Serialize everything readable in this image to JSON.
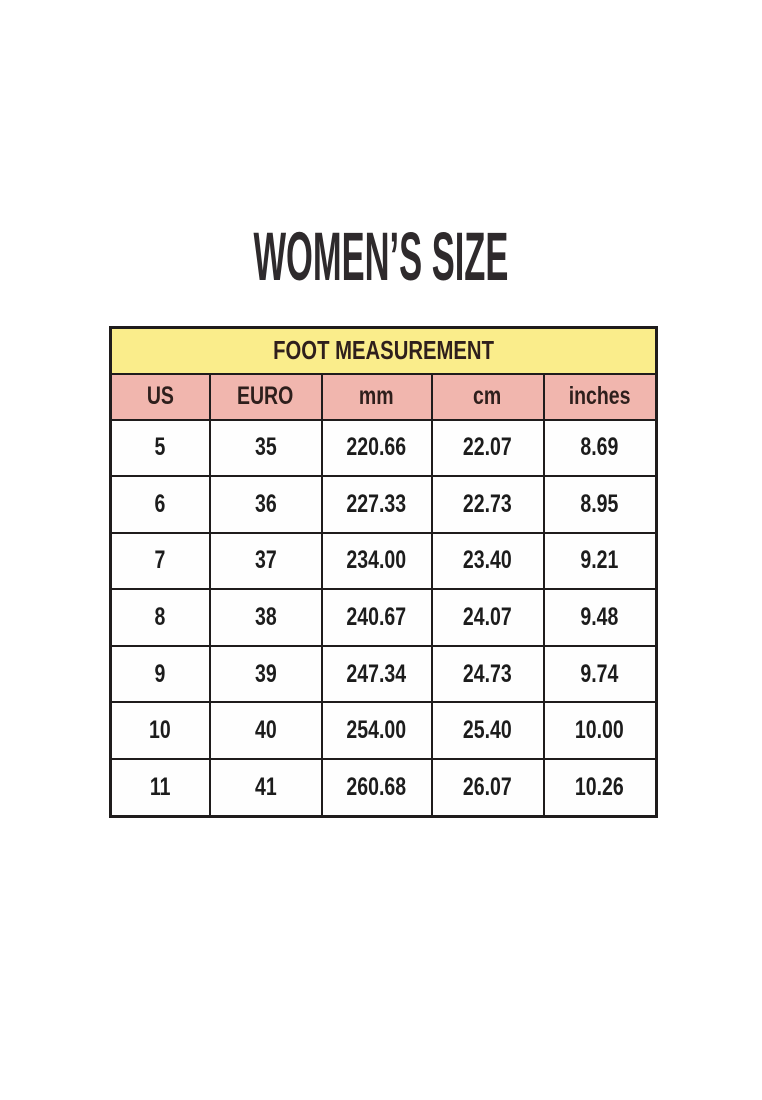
{
  "page": {
    "title": "WOMEN’S SIZE"
  },
  "size_chart": {
    "header": "FOOT MEASUREMENT",
    "columns": [
      "US",
      "EURO",
      "mm",
      "cm",
      "inches"
    ],
    "rows": [
      [
        "5",
        "35",
        "220.66",
        "22.07",
        "8.69"
      ],
      [
        "6",
        "36",
        "227.33",
        "22.73",
        "8.95"
      ],
      [
        "7",
        "37",
        "234.00",
        "23.40",
        "9.21"
      ],
      [
        "8",
        "38",
        "240.67",
        "24.07",
        "9.48"
      ],
      [
        "9",
        "39",
        "247.34",
        "24.73",
        "9.74"
      ],
      [
        "10",
        "40",
        "254.00",
        "25.40",
        "10.00"
      ],
      [
        "11",
        "41",
        "260.68",
        "26.07",
        "10.26"
      ]
    ],
    "colors": {
      "header_bg": "#faed8b",
      "columns_bg": "#f1b6ae",
      "border": "#1f1c1c",
      "header_text": "#2e1f1c",
      "cell_text": "#1c1c1c",
      "title_text": "#2e2a2c"
    }
  }
}
